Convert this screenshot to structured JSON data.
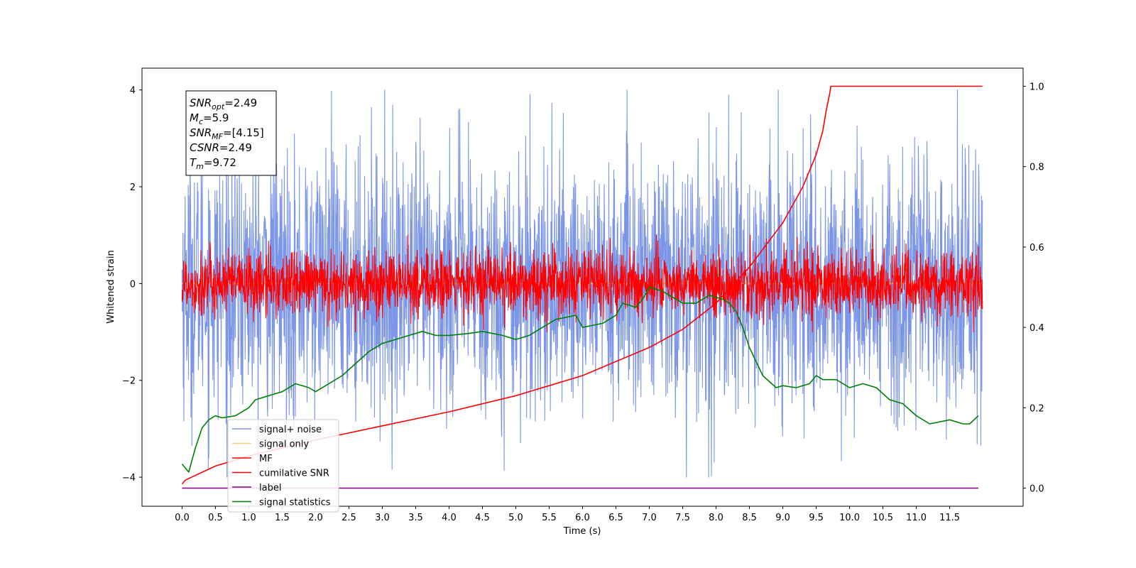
{
  "chart_data": {
    "type": "line",
    "xlabel": "Time (s)",
    "ylabel_left": "Whitened strain",
    "ylabel_right": "",
    "xlim": [
      -0.6,
      12.6
    ],
    "ylim_left": [
      -4.6,
      4.45
    ],
    "ylim_right": [
      -0.045,
      1.045
    ],
    "x_ticks": [
      "0.0",
      "0.5",
      "1.0",
      "1.5",
      "2.0",
      "2.5",
      "3.0",
      "3.5",
      "4.0",
      "4.5",
      "5.0",
      "5.5",
      "6.0",
      "6.5",
      "7.0",
      "7.5",
      "8.0",
      "8.5",
      "9.0",
      "9.5",
      "10.0",
      "10.5",
      "11.0",
      "11.5"
    ],
    "y_ticks_left": [
      "4",
      "2",
      "0",
      "−2",
      "−4"
    ],
    "y_ticks_right": [
      "1.0",
      "0.8",
      "0.6",
      "0.4",
      "0.2",
      "0.0"
    ],
    "annotation": [
      {
        "base": "SNR",
        "sub": "opt",
        "value": "=2.49"
      },
      {
        "base": "M",
        "sub": "c",
        "value": "=5.9"
      },
      {
        "base": "SNR",
        "sub": "MF",
        "value": "=[4.15]"
      },
      {
        "base": "CSNR",
        "sub": "",
        "value": "=2.49"
      },
      {
        "base": "T",
        "sub": "m",
        "value": "=9.72"
      }
    ],
    "legend_position": "bottom-left",
    "series": [
      {
        "name": "signal+ noise",
        "color": "#7b95e8",
        "axis": "left",
        "style": "noise",
        "x_range": [
          0,
          11.99
        ],
        "amplitude_approx": 4.0
      },
      {
        "name": "signal only",
        "color": "#fdcd80",
        "axis": "left",
        "style": "flat",
        "x_range": [
          0,
          11.99
        ]
      },
      {
        "name": "MF",
        "color": "#ff0000",
        "axis": "left",
        "style": "noise",
        "x_range": [
          0,
          11.99
        ],
        "amplitude_approx": 1.0
      },
      {
        "name": "cumilative SNR",
        "color": "#ff0000",
        "axis": "right",
        "x": [
          0,
          0.05,
          0.5,
          1,
          2,
          3,
          4,
          5,
          6,
          7,
          7.5,
          8,
          8.5,
          9,
          9.3,
          9.5,
          9.6,
          9.65,
          9.7,
          9.72,
          11.99
        ],
        "values": [
          0.01,
          0.02,
          0.055,
          0.08,
          0.12,
          0.155,
          0.19,
          0.23,
          0.28,
          0.35,
          0.395,
          0.46,
          0.55,
          0.66,
          0.75,
          0.83,
          0.89,
          0.94,
          0.98,
          1.0,
          1.0
        ]
      },
      {
        "name": "label",
        "color": "#800080",
        "axis": "right",
        "x": [
          0,
          11.93
        ],
        "values": [
          0.0,
          0.0
        ]
      },
      {
        "name": "signal statistics",
        "color": "#008000",
        "axis": "right",
        "x": [
          0,
          0.1,
          0.2,
          0.3,
          0.4,
          0.5,
          0.6,
          0.8,
          1.0,
          1.1,
          1.3,
          1.5,
          1.7,
          1.9,
          2.0,
          2.2,
          2.4,
          2.6,
          2.8,
          3.0,
          3.2,
          3.4,
          3.6,
          3.8,
          4.0,
          4.3,
          4.5,
          4.8,
          5.0,
          5.2,
          5.4,
          5.6,
          5.9,
          6.0,
          6.3,
          6.5,
          6.6,
          6.8,
          6.9,
          7.0,
          7.2,
          7.5,
          7.7,
          7.9,
          8.1,
          8.2,
          8.3,
          8.4,
          8.5,
          8.7,
          8.9,
          9.0,
          9.2,
          9.4,
          9.5,
          9.6,
          9.8,
          10.0,
          10.2,
          10.4,
          10.6,
          10.8,
          11.0,
          11.2,
          11.5,
          11.7,
          11.8,
          11.93
        ],
        "values": [
          0.06,
          0.04,
          0.1,
          0.15,
          0.17,
          0.18,
          0.175,
          0.18,
          0.2,
          0.22,
          0.23,
          0.24,
          0.26,
          0.25,
          0.24,
          0.26,
          0.28,
          0.31,
          0.34,
          0.36,
          0.37,
          0.38,
          0.39,
          0.38,
          0.38,
          0.385,
          0.39,
          0.38,
          0.37,
          0.38,
          0.4,
          0.42,
          0.43,
          0.4,
          0.41,
          0.43,
          0.46,
          0.45,
          0.47,
          0.5,
          0.49,
          0.46,
          0.46,
          0.48,
          0.47,
          0.46,
          0.44,
          0.4,
          0.35,
          0.28,
          0.25,
          0.255,
          0.25,
          0.26,
          0.28,
          0.27,
          0.27,
          0.25,
          0.26,
          0.25,
          0.22,
          0.21,
          0.18,
          0.16,
          0.17,
          0.16,
          0.16,
          0.18
        ]
      }
    ]
  }
}
